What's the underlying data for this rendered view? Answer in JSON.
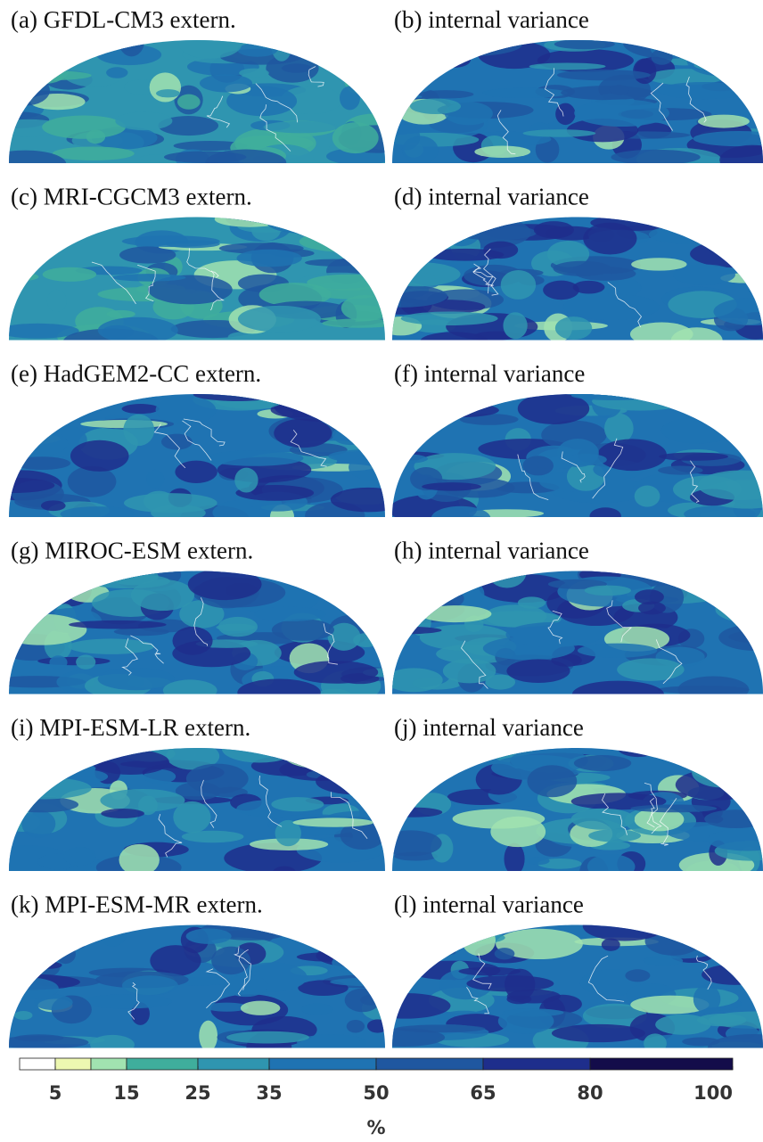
{
  "panels": [
    {
      "title": "(a) GFDL-CM3 extern."
    },
    {
      "title": "(b) internal variance"
    },
    {
      "title": "(c) MRI-CGCM3 extern."
    },
    {
      "title": "(d) internal variance"
    },
    {
      "title": "(e) HadGEM2-CC extern."
    },
    {
      "title": "(f) internal variance"
    },
    {
      "title": "(g) MIROC-ESM extern."
    },
    {
      "title": "(h) internal variance"
    },
    {
      "title": "(i) MPI-ESM-LR extern."
    },
    {
      "title": "(j) internal variance"
    },
    {
      "title": "(k) MPI-ESM-MR extern."
    },
    {
      "title": "(l) internal variance"
    }
  ],
  "colorbar": {
    "bounds": [
      0,
      5,
      10,
      15,
      25,
      35,
      50,
      65,
      80,
      100
    ],
    "colors": [
      "#ffffff",
      "#edf8b1",
      "#a1e3b0",
      "#3fae9c",
      "#2f95b0",
      "#1f73b2",
      "#1f57a0",
      "#1e2e8c",
      "#130c4a"
    ],
    "xlim": [
      0,
      100
    ],
    "xticks": [
      5,
      15,
      25,
      35,
      50,
      65,
      80,
      100
    ],
    "label": "%"
  }
}
